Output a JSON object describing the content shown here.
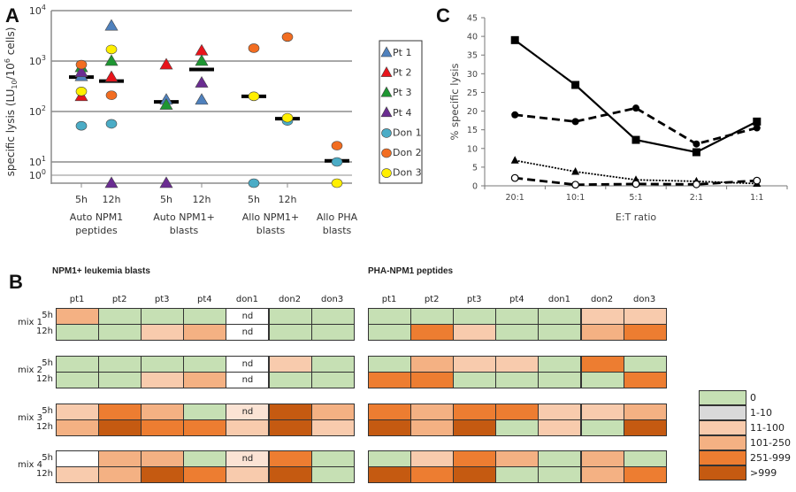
{
  "panels": {
    "A_label": "A",
    "B_label": "B",
    "C_label": "C"
  },
  "chart_data": [
    {
      "id": "A",
      "type": "scatter",
      "ylabel": "specific lysis (LU10/10^6 cells)",
      "ylabel_parts": {
        "pre": "specific lysis (LU",
        "sub": "10",
        "mid": "/10",
        "sup": "6",
        "post": " cells)"
      },
      "yscale": "log",
      "yticks": [
        {
          "base": "10",
          "exp": "4",
          "value": 10000
        },
        {
          "base": "10",
          "exp": "3",
          "value": 1000
        },
        {
          "base": "10",
          "exp": "2",
          "value": 100
        },
        {
          "base": "10",
          "exp": "1",
          "value": 10
        },
        {
          "base": "10",
          "exp": "0",
          "value": 1
        }
      ],
      "ylim": [
        0.5,
        10000
      ],
      "grid": true,
      "legend_position": "right",
      "groups": [
        {
          "label_line1": "Auto NPM1",
          "label_line2": "peptides",
          "timepoints": [
            "5h",
            "12h"
          ]
        },
        {
          "label_line1": "Auto NPM1+",
          "label_line2": "blasts",
          "timepoints": [
            "5h",
            "12h"
          ]
        },
        {
          "label_line1": "Allo NPM1+",
          "label_line2": "blasts",
          "timepoints": [
            "5h",
            "12h"
          ]
        },
        {
          "label_line1": "Allo PHA",
          "label_line2": "blasts",
          "timepoints": [
            ""
          ]
        }
      ],
      "series": [
        {
          "name": "Pt 1",
          "marker": "triangle",
          "color": "#4f81bd",
          "points": [
            {
              "x": 0,
              "y": 500
            },
            {
              "x": 1,
              "y": 5000
            },
            {
              "x": 2,
              "y": 170
            },
            {
              "x": 3,
              "y": 170
            }
          ]
        },
        {
          "name": "Pt 2",
          "marker": "triangle",
          "color": "#e8141b",
          "points": [
            {
              "x": 0,
              "y": 200
            },
            {
              "x": 1,
              "y": 480
            },
            {
              "x": 2,
              "y": 850
            },
            {
              "x": 3,
              "y": 1600
            }
          ]
        },
        {
          "name": "Pt 3",
          "marker": "triangle",
          "color": "#1e9632",
          "points": [
            {
              "x": 0,
              "y": 750
            },
            {
              "x": 1,
              "y": 1000
            },
            {
              "x": 2,
              "y": 135
            },
            {
              "x": 3,
              "y": 1000
            }
          ]
        },
        {
          "name": "Pt 4",
          "marker": "triangle",
          "color": "#6a2c91",
          "points": [
            {
              "x": 0,
              "y": 600
            },
            {
              "x": 1,
              "y": 0
            },
            {
              "x": 2,
              "y": 0
            },
            {
              "x": 3,
              "y": 370
            }
          ]
        },
        {
          "name": "Don 1",
          "marker": "circle",
          "color": "#4bacc6",
          "points": [
            {
              "x": 0,
              "y": 52
            },
            {
              "x": 1,
              "y": 57
            },
            {
              "x": 4,
              "y": 0
            },
            {
              "x": 5,
              "y": 65
            },
            {
              "x": 6,
              "y": 10
            }
          ]
        },
        {
          "name": "Don 2",
          "marker": "circle",
          "color": "#f26d21",
          "points": [
            {
              "x": 0,
              "y": 850
            },
            {
              "x": 1,
              "y": 210
            },
            {
              "x": 4,
              "y": 1800
            },
            {
              "x": 5,
              "y": 3000
            },
            {
              "x": 6,
              "y": 21
            }
          ]
        },
        {
          "name": "Don 3",
          "marker": "circle",
          "color": "#ffef00",
          "points": [
            {
              "x": 0,
              "y": 250
            },
            {
              "x": 1,
              "y": 1700
            },
            {
              "x": 4,
              "y": 200
            },
            {
              "x": 5,
              "y": 75
            },
            {
              "x": 6,
              "y": 0
            }
          ]
        }
      ],
      "medians": [
        {
          "x": 0,
          "y": 480
        },
        {
          "x": 1,
          "y": 400
        },
        {
          "x": 2,
          "y": 155
        },
        {
          "x": 3,
          "y": 680
        },
        {
          "x": 4,
          "y": 200
        },
        {
          "x": 5,
          "y": 72
        },
        {
          "x": 6,
          "y": 10.5
        }
      ]
    },
    {
      "id": "C",
      "type": "line",
      "xlabel": "E:T ratio",
      "ylabel": "% specific lysis",
      "categories": [
        "20:1",
        "10:1",
        "5:1",
        "2:1",
        "1:1"
      ],
      "ylim": [
        0,
        45
      ],
      "yticks": [
        0,
        5,
        10,
        15,
        20,
        25,
        30,
        35,
        40,
        45
      ],
      "grid": false,
      "series": [
        {
          "name": "solid-square",
          "style": "solid",
          "marker": "square",
          "values": [
            39,
            27,
            12.3,
            9,
            17.2
          ]
        },
        {
          "name": "dashed-filled-circle",
          "style": "dashed",
          "marker": "filled-circle",
          "values": [
            19,
            17.2,
            20.8,
            11.2,
            15.5
          ]
        },
        {
          "name": "dotted-triangle",
          "style": "dotted",
          "marker": "triangle",
          "values": [
            6.8,
            3.8,
            1.6,
            1.2,
            0.6
          ]
        },
        {
          "name": "dashed-open-circle",
          "style": "dashed",
          "marker": "open-circle",
          "values": [
            2.1,
            0.3,
            0.5,
            0.4,
            1.4
          ]
        }
      ]
    },
    {
      "id": "B",
      "type": "heatmap",
      "legend": [
        {
          "label": "0",
          "color": "#c6e0b4"
        },
        {
          "label": "1-10",
          "color": "#d9d9d9"
        },
        {
          "label": "11-100",
          "color": "#f8cbad"
        },
        {
          "label": "101-250",
          "color": "#f4b183"
        },
        {
          "label": "251-999",
          "color": "#ed7d31"
        },
        {
          "label": ">999",
          "color": "#c55a11"
        }
      ],
      "columns": [
        "pt1",
        "pt2",
        "pt3",
        "pt4",
        "don1",
        "don2",
        "don3"
      ],
      "mixes": [
        "mix 1",
        "mix 2",
        "mix 3",
        "mix 4"
      ],
      "timepoints": [
        "5h",
        "12h"
      ],
      "nd_label": "nd",
      "tables": [
        {
          "title": "NPM1+ leukemia blasts",
          "rows": [
            [
              "101-250",
              "0",
              "0",
              "0",
              "nd",
              "0",
              "0"
            ],
            [
              "0",
              "0",
              "11-100",
              "101-250",
              "nd",
              "0",
              "0"
            ],
            [
              "0",
              "0",
              "0",
              "0",
              "nd",
              "11-100",
              "0"
            ],
            [
              "0",
              "0",
              "11-100",
              "101-250",
              "nd",
              "0",
              "0"
            ],
            [
              "11-100",
              "251-999",
              "101-250",
              "0",
              "nd-11-100",
              ">999",
              "101-250"
            ],
            [
              "101-250",
              ">999",
              "251-999",
              "251-999",
              "11-100",
              ">999",
              "11-100"
            ],
            [
              "blank",
              "101-250",
              "101-250",
              "0",
              "nd-11-100",
              "251-999",
              "0"
            ],
            [
              "11-100",
              "101-250",
              ">999",
              "251-999",
              "11-100",
              ">999",
              "0"
            ]
          ]
        },
        {
          "title": "PHA-NPM1  peptides",
          "rows": [
            [
              "0",
              "0",
              "0",
              "0",
              "0",
              "11-100",
              "11-100"
            ],
            [
              "0",
              "251-999",
              "11-100",
              "0",
              "0",
              "101-250",
              "251-999"
            ],
            [
              "0",
              "101-250",
              "11-100",
              "11-100",
              "0",
              "251-999",
              "0"
            ],
            [
              "251-999",
              "251-999",
              "0",
              "0",
              "0",
              "0",
              "251-999"
            ],
            [
              "251-999",
              "101-250",
              "251-999",
              "251-999",
              "11-100",
              "11-100",
              "101-250"
            ],
            [
              ">999",
              "101-250",
              ">999",
              "0",
              "11-100",
              "0",
              ">999"
            ],
            [
              "0",
              "11-100",
              "251-999",
              "101-250",
              "0",
              "101-250",
              "0"
            ],
            [
              ">999",
              "251-999",
              ">999",
              "0",
              "0",
              "101-250",
              "251-999"
            ]
          ]
        }
      ]
    }
  ]
}
